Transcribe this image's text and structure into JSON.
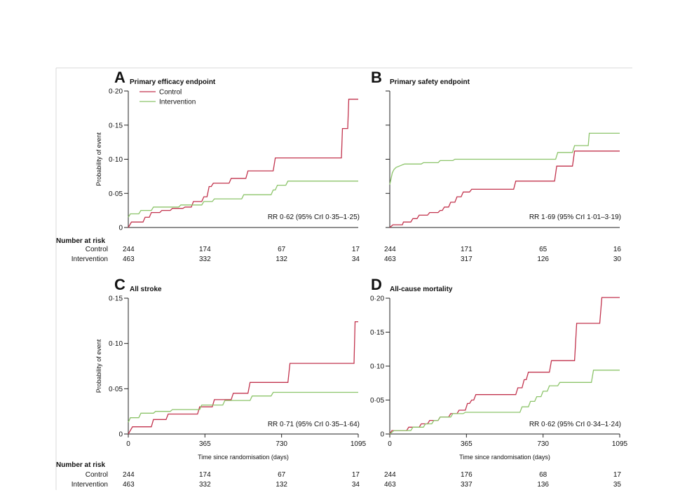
{
  "colors": {
    "control": "#c2334d",
    "intervention": "#8cc46a",
    "axis": "#222222",
    "frame": "#d9d9d9"
  },
  "chart_data": [
    {
      "type": "line",
      "letter": "A",
      "title": "Primary efficacy endpoint",
      "ylabel": "Probability of event",
      "xlabel": "",
      "xlim": [
        0,
        1095
      ],
      "ylim": [
        0,
        0.2
      ],
      "yticks": [
        "0",
        "0·05",
        "0·10",
        "0·15",
        "0·20"
      ],
      "yticks_values": [
        0,
        0.05,
        0.1,
        0.15,
        0.2
      ],
      "xticks": [],
      "legend": [
        "Control",
        "Intervention"
      ],
      "annotation": "RR 0·62 (95% CrI 0·35–1·25)",
      "series": [
        {
          "name": "Control",
          "step": [
            [
              0,
              0
            ],
            [
              15,
              0.008
            ],
            [
              70,
              0.008
            ],
            [
              80,
              0.015
            ],
            [
              100,
              0.015
            ],
            [
              110,
              0.022
            ],
            [
              150,
              0.022
            ],
            [
              160,
              0.025
            ],
            [
              200,
              0.025
            ],
            [
              210,
              0.028
            ],
            [
              260,
              0.028
            ],
            [
              270,
              0.03
            ],
            [
              300,
              0.03
            ],
            [
              310,
              0.038
            ],
            [
              350,
              0.038
            ],
            [
              360,
              0.045
            ],
            [
              375,
              0.045
            ],
            [
              385,
              0.06
            ],
            [
              395,
              0.06
            ],
            [
              405,
              0.065
            ],
            [
              480,
              0.065
            ],
            [
              490,
              0.072
            ],
            [
              560,
              0.072
            ],
            [
              570,
              0.083
            ],
            [
              690,
              0.083
            ],
            [
              700,
              0.102
            ],
            [
              1015,
              0.102
            ],
            [
              1020,
              0.145
            ],
            [
              1045,
              0.145
            ],
            [
              1050,
              0.188
            ],
            [
              1095,
              0.188
            ]
          ]
        },
        {
          "name": "Intervention",
          "step": [
            [
              0,
              0.015
            ],
            [
              10,
              0.02
            ],
            [
              50,
              0.02
            ],
            [
              60,
              0.025
            ],
            [
              110,
              0.025
            ],
            [
              120,
              0.03
            ],
            [
              240,
              0.03
            ],
            [
              250,
              0.033
            ],
            [
              350,
              0.033
            ],
            [
              360,
              0.038
            ],
            [
              400,
              0.038
            ],
            [
              410,
              0.042
            ],
            [
              540,
              0.042
            ],
            [
              550,
              0.048
            ],
            [
              680,
              0.048
            ],
            [
              690,
              0.055
            ],
            [
              700,
              0.055
            ],
            [
              710,
              0.062
            ],
            [
              750,
              0.062
            ],
            [
              760,
              0.068
            ],
            [
              1095,
              0.068
            ]
          ]
        }
      ],
      "risk": {
        "header": "Number at risk",
        "rows": [
          {
            "label": "Control",
            "values": [
              "244",
              "174",
              "67",
              "17"
            ]
          },
          {
            "label": "Intervention",
            "values": [
              "463",
              "332",
              "132",
              "34"
            ]
          }
        ]
      }
    },
    {
      "type": "line",
      "letter": "B",
      "title": "Primary safety endpoint",
      "ylabel": "",
      "xlabel": "",
      "xlim": [
        0,
        1095
      ],
      "ylim": [
        0,
        0.2
      ],
      "yticks": [],
      "yticks_values": [
        0,
        0.05,
        0.1,
        0.15,
        0.2
      ],
      "xticks": [],
      "legend": [],
      "annotation": "RR 1·69 (95% CrI 1·01–3·19)",
      "series": [
        {
          "name": "Control",
          "step": [
            [
              0,
              0
            ],
            [
              15,
              0.004
            ],
            [
              60,
              0.004
            ],
            [
              65,
              0.008
            ],
            [
              100,
              0.008
            ],
            [
              110,
              0.013
            ],
            [
              130,
              0.013
            ],
            [
              140,
              0.018
            ],
            [
              180,
              0.018
            ],
            [
              190,
              0.022
            ],
            [
              230,
              0.022
            ],
            [
              240,
              0.025
            ],
            [
              250,
              0.025
            ],
            [
              260,
              0.03
            ],
            [
              280,
              0.03
            ],
            [
              290,
              0.037
            ],
            [
              310,
              0.037
            ],
            [
              320,
              0.045
            ],
            [
              340,
              0.045
            ],
            [
              350,
              0.052
            ],
            [
              380,
              0.052
            ],
            [
              390,
              0.056
            ],
            [
              590,
              0.056
            ],
            [
              600,
              0.068
            ],
            [
              785,
              0.068
            ],
            [
              795,
              0.09
            ],
            [
              870,
              0.09
            ],
            [
              880,
              0.112
            ],
            [
              1095,
              0.112
            ]
          ]
        },
        {
          "name": "Intervention",
          "step": [
            [
              0,
              0.063
            ],
            [
              5,
              0.07
            ],
            [
              12,
              0.08
            ],
            [
              20,
              0.085
            ],
            [
              30,
              0.088
            ],
            [
              45,
              0.09
            ],
            [
              70,
              0.093
            ],
            [
              150,
              0.093
            ],
            [
              160,
              0.095
            ],
            [
              230,
              0.095
            ],
            [
              240,
              0.098
            ],
            [
              300,
              0.098
            ],
            [
              310,
              0.1
            ],
            [
              790,
              0.1
            ],
            [
              800,
              0.11
            ],
            [
              870,
              0.11
            ],
            [
              880,
              0.12
            ],
            [
              945,
              0.12
            ],
            [
              950,
              0.138
            ],
            [
              1095,
              0.138
            ]
          ]
        }
      ],
      "risk": {
        "header": "",
        "rows": [
          {
            "label": "",
            "values": [
              "244",
              "171",
              "65",
              "16"
            ]
          },
          {
            "label": "",
            "values": [
              "463",
              "317",
              "126",
              "30"
            ]
          }
        ]
      }
    },
    {
      "type": "line",
      "letter": "C",
      "title": "All stroke",
      "ylabel": "Probability of event",
      "xlabel": "Time since randomisation (days)",
      "xlim": [
        0,
        1095
      ],
      "ylim": [
        0,
        0.15
      ],
      "yticks": [
        "0",
        "0·05",
        "0·10",
        "0·15"
      ],
      "yticks_values": [
        0,
        0.05,
        0.1,
        0.15
      ],
      "xticks": [
        "0",
        "365",
        "730",
        "1095"
      ],
      "xticks_values": [
        0,
        365,
        730,
        1095
      ],
      "legend": [],
      "annotation": "RR 0·71 (95% CrI 0·35–1·64)",
      "series": [
        {
          "name": "Control",
          "step": [
            [
              0,
              0
            ],
            [
              20,
              0.008
            ],
            [
              110,
              0.008
            ],
            [
              120,
              0.016
            ],
            [
              180,
              0.016
            ],
            [
              190,
              0.022
            ],
            [
              330,
              0.022
            ],
            [
              340,
              0.03
            ],
            [
              400,
              0.03
            ],
            [
              410,
              0.038
            ],
            [
              490,
              0.038
            ],
            [
              500,
              0.045
            ],
            [
              570,
              0.045
            ],
            [
              580,
              0.057
            ],
            [
              760,
              0.057
            ],
            [
              770,
              0.078
            ],
            [
              1075,
              0.078
            ],
            [
              1080,
              0.124
            ],
            [
              1095,
              0.124
            ]
          ]
        },
        {
          "name": "Intervention",
          "step": [
            [
              0,
              0.013
            ],
            [
              10,
              0.018
            ],
            [
              50,
              0.018
            ],
            [
              60,
              0.023
            ],
            [
              120,
              0.023
            ],
            [
              130,
              0.025
            ],
            [
              200,
              0.025
            ],
            [
              210,
              0.027
            ],
            [
              340,
              0.027
            ],
            [
              350,
              0.032
            ],
            [
              450,
              0.032
            ],
            [
              460,
              0.037
            ],
            [
              580,
              0.037
            ],
            [
              590,
              0.042
            ],
            [
              680,
              0.042
            ],
            [
              690,
              0.046
            ],
            [
              1095,
              0.046
            ]
          ]
        }
      ],
      "risk": {
        "header": "Number at risk",
        "rows": [
          {
            "label": "Control",
            "values": [
              "244",
              "174",
              "67",
              "17"
            ]
          },
          {
            "label": "Intervention",
            "values": [
              "463",
              "332",
              "132",
              "34"
            ]
          }
        ]
      }
    },
    {
      "type": "line",
      "letter": "D",
      "title": "All-cause mortality",
      "ylabel": "",
      "xlabel": "Time since randomisation (days)",
      "xlim": [
        0,
        1095
      ],
      "ylim": [
        0,
        0.2
      ],
      "yticks": [
        "0",
        "0·05",
        "0·10",
        "0·15",
        "0·20"
      ],
      "yticks_values": [
        0,
        0.05,
        0.1,
        0.15,
        0.2
      ],
      "xticks": [
        "0",
        "365",
        "730",
        "1095"
      ],
      "xticks_values": [
        0,
        365,
        730,
        1095
      ],
      "legend": [],
      "annotation": "RR 0·62 (95% CrI 0·34–1·24)",
      "series": [
        {
          "name": "Control",
          "step": [
            [
              0,
              0
            ],
            [
              10,
              0.005
            ],
            [
              80,
              0.005
            ],
            [
              90,
              0.01
            ],
            [
              140,
              0.01
            ],
            [
              150,
              0.015
            ],
            [
              180,
              0.015
            ],
            [
              190,
              0.02
            ],
            [
              230,
              0.02
            ],
            [
              240,
              0.025
            ],
            [
              280,
              0.025
            ],
            [
              290,
              0.03
            ],
            [
              320,
              0.03
            ],
            [
              330,
              0.035
            ],
            [
              360,
              0.035
            ],
            [
              370,
              0.045
            ],
            [
              380,
              0.045
            ],
            [
              390,
              0.05
            ],
            [
              400,
              0.05
            ],
            [
              410,
              0.058
            ],
            [
              600,
              0.058
            ],
            [
              610,
              0.068
            ],
            [
              630,
              0.068
            ],
            [
              640,
              0.08
            ],
            [
              650,
              0.08
            ],
            [
              660,
              0.091
            ],
            [
              760,
              0.091
            ],
            [
              770,
              0.108
            ],
            [
              880,
              0.108
            ],
            [
              890,
              0.163
            ],
            [
              1000,
              0.163
            ],
            [
              1010,
              0.201
            ],
            [
              1095,
              0.201
            ]
          ]
        },
        {
          "name": "Intervention",
          "step": [
            [
              0,
              0
            ],
            [
              20,
              0.005
            ],
            [
              100,
              0.005
            ],
            [
              110,
              0.01
            ],
            [
              160,
              0.01
            ],
            [
              170,
              0.015
            ],
            [
              200,
              0.015
            ],
            [
              210,
              0.02
            ],
            [
              230,
              0.02
            ],
            [
              240,
              0.025
            ],
            [
              290,
              0.025
            ],
            [
              300,
              0.03
            ],
            [
              350,
              0.03
            ],
            [
              360,
              0.032
            ],
            [
              620,
              0.032
            ],
            [
              630,
              0.04
            ],
            [
              660,
              0.04
            ],
            [
              670,
              0.048
            ],
            [
              690,
              0.048
            ],
            [
              700,
              0.055
            ],
            [
              720,
              0.055
            ],
            [
              730,
              0.063
            ],
            [
              750,
              0.063
            ],
            [
              760,
              0.071
            ],
            [
              800,
              0.071
            ],
            [
              810,
              0.076
            ],
            [
              960,
              0.076
            ],
            [
              970,
              0.094
            ],
            [
              1095,
              0.094
            ]
          ]
        }
      ],
      "risk": {
        "header": "",
        "rows": [
          {
            "label": "",
            "values": [
              "244",
              "176",
              "68",
              "17"
            ]
          },
          {
            "label": "",
            "values": [
              "463",
              "337",
              "136",
              "35"
            ]
          }
        ]
      }
    }
  ]
}
